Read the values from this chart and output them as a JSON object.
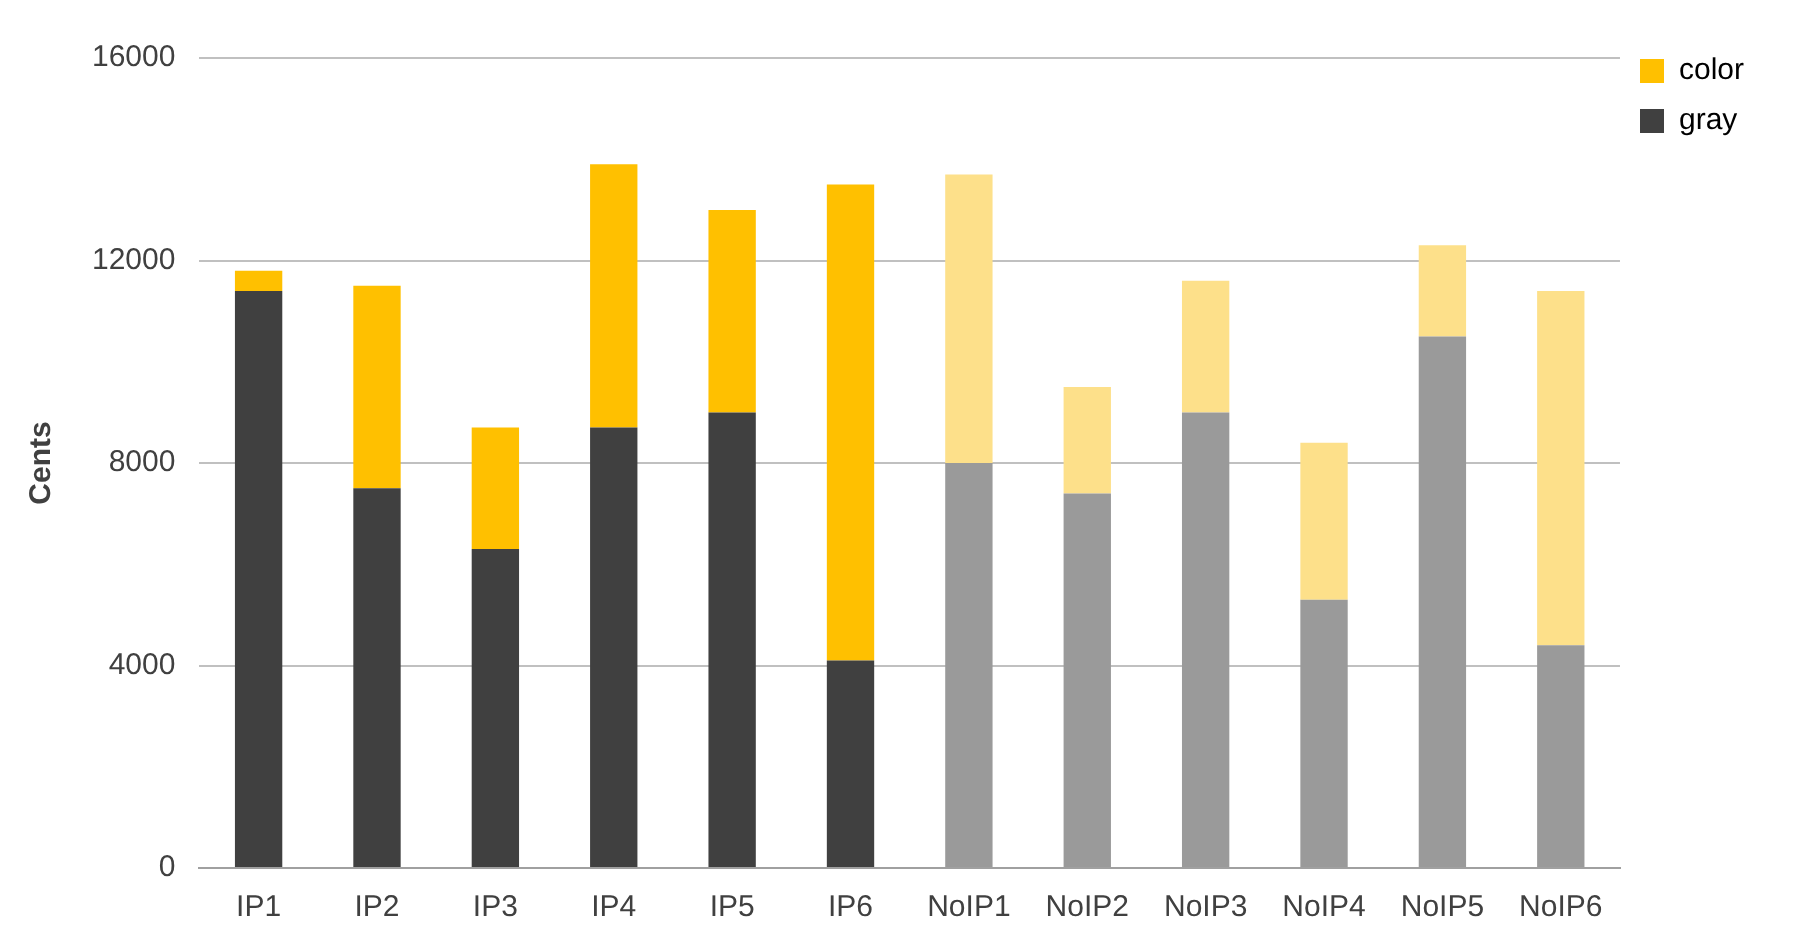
{
  "chart_data": {
    "type": "bar",
    "ylabel": "Cents",
    "stacked": true,
    "categories": [
      "IP1",
      "IP2",
      "IP3",
      "IP4",
      "IP5",
      "IP6",
      "NoIP1",
      "NoIP2",
      "NoIP3",
      "NoIP4",
      "NoIP5",
      "NoIP6"
    ],
    "series": [
      {
        "name": "gray",
        "color": "#404040",
        "colors": [
          "#404040",
          "#404040",
          "#404040",
          "#404040",
          "#404040",
          "#404040",
          "#9a9a9a",
          "#9a9a9a",
          "#9a9a9a",
          "#9a9a9a",
          "#9a9a9a",
          "#9a9a9a"
        ],
        "values": [
          11400,
          7500,
          6300,
          8700,
          9000,
          4100,
          8000,
          7400,
          9000,
          5300,
          10500,
          4400
        ]
      },
      {
        "name": "color",
        "color": "#ffc000",
        "colors": [
          "#ffc000",
          "#ffc000",
          "#ffc000",
          "#ffc000",
          "#ffc000",
          "#ffc000",
          "#fde08a",
          "#fde08a",
          "#fde08a",
          "#fde08a",
          "#fde08a",
          "#fde08a"
        ],
        "values": [
          400,
          4000,
          2400,
          5200,
          4000,
          9400,
          5700,
          2100,
          2600,
          3100,
          1800,
          7000
        ]
      }
    ],
    "ylim": [
      0,
      16000
    ],
    "yticks": [
      0,
      4000,
      8000,
      12000,
      16000
    ],
    "grid": "y",
    "legend": "top right"
  }
}
